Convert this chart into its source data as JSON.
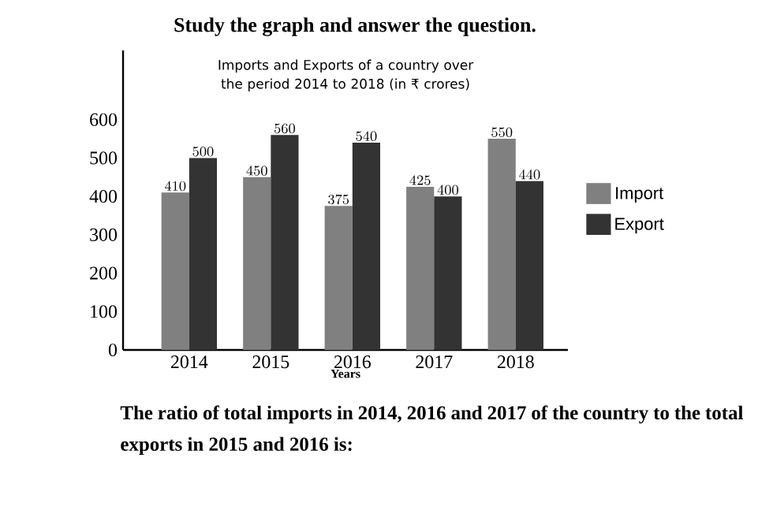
{
  "chart_data": {
    "type": "bar",
    "title": "Imports and Exports of a country over the period 2014 to 2018 (in ₹ crores)",
    "xlabel": "Years",
    "categories": [
      "2014",
      "2015",
      "2016",
      "2017",
      "2018"
    ],
    "series": [
      {
        "name": "Import",
        "color": "#808080",
        "values": [
          410,
          450,
          375,
          425,
          550
        ]
      },
      {
        "name": "Export",
        "color": "#333333",
        "values": [
          500,
          560,
          540,
          400,
          440
        ]
      }
    ],
    "ylim": [
      0,
      780
    ],
    "yticks": [
      0,
      100,
      200,
      300,
      400,
      500,
      600
    ],
    "data_labels": true,
    "legend": "right",
    "annotations": [
      "Study the graph and answer the question.",
      "The ratio of total imports in 2014, 2016 and 2017 of the country to the total exports in 2015 and 2016 is:"
    ]
  }
}
